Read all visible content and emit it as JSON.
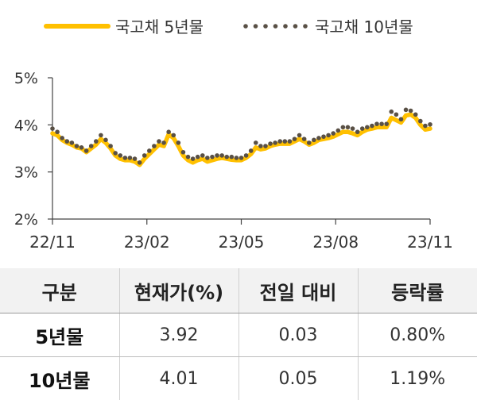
{
  "chart_data": {
    "type": "line",
    "legend_position": "top",
    "grid": false,
    "ylim": [
      2,
      5
    ],
    "yticks": [
      "5%",
      "4%",
      "3%",
      "2%"
    ],
    "ytick_values": [
      5,
      4,
      3,
      2
    ],
    "xticks": [
      "22/11",
      "23/02",
      "23/05",
      "23/08",
      "23/11"
    ],
    "series": [
      {
        "name": "국고채 5년물",
        "color": "#FFC000",
        "style": "solid",
        "values": [
          3.82,
          3.78,
          3.68,
          3.62,
          3.58,
          3.52,
          3.5,
          3.42,
          3.5,
          3.58,
          3.7,
          3.62,
          3.5,
          3.35,
          3.28,
          3.25,
          3.25,
          3.22,
          3.15,
          3.28,
          3.38,
          3.48,
          3.58,
          3.55,
          3.8,
          3.72,
          3.55,
          3.35,
          3.25,
          3.2,
          3.25,
          3.28,
          3.22,
          3.25,
          3.28,
          3.3,
          3.28,
          3.26,
          3.25,
          3.25,
          3.3,
          3.38,
          3.52,
          3.48,
          3.5,
          3.55,
          3.58,
          3.6,
          3.6,
          3.6,
          3.65,
          3.7,
          3.65,
          3.58,
          3.62,
          3.68,
          3.7,
          3.72,
          3.75,
          3.8,
          3.85,
          3.85,
          3.82,
          3.78,
          3.85,
          3.9,
          3.92,
          3.95,
          3.95,
          3.95,
          4.15,
          4.1,
          4.05,
          4.2,
          4.22,
          4.15,
          4.0,
          3.9,
          3.92
        ]
      },
      {
        "name": "국고채 10년물",
        "color": "#595045",
        "style": "dotted",
        "values": [
          3.92,
          3.85,
          3.72,
          3.65,
          3.62,
          3.55,
          3.52,
          3.45,
          3.55,
          3.65,
          3.78,
          3.68,
          3.55,
          3.4,
          3.35,
          3.3,
          3.3,
          3.28,
          3.2,
          3.35,
          3.45,
          3.55,
          3.65,
          3.62,
          3.85,
          3.78,
          3.62,
          3.42,
          3.32,
          3.28,
          3.32,
          3.35,
          3.3,
          3.32,
          3.35,
          3.35,
          3.32,
          3.32,
          3.3,
          3.3,
          3.35,
          3.45,
          3.62,
          3.55,
          3.55,
          3.6,
          3.62,
          3.65,
          3.65,
          3.65,
          3.7,
          3.78,
          3.7,
          3.62,
          3.68,
          3.72,
          3.75,
          3.78,
          3.82,
          3.88,
          3.95,
          3.95,
          3.92,
          3.85,
          3.92,
          3.95,
          3.98,
          4.02,
          4.02,
          4.02,
          4.28,
          4.22,
          4.12,
          4.32,
          4.3,
          4.22,
          4.08,
          3.98,
          4.01
        ]
      }
    ]
  },
  "table": {
    "headers": [
      "구분",
      "현재가(%)",
      "전일 대비",
      "등락률"
    ],
    "rows": [
      [
        "5년물",
        "3.92",
        "0.03",
        "0.80%"
      ],
      [
        "10년물",
        "4.01",
        "0.05",
        "1.19%"
      ]
    ]
  }
}
